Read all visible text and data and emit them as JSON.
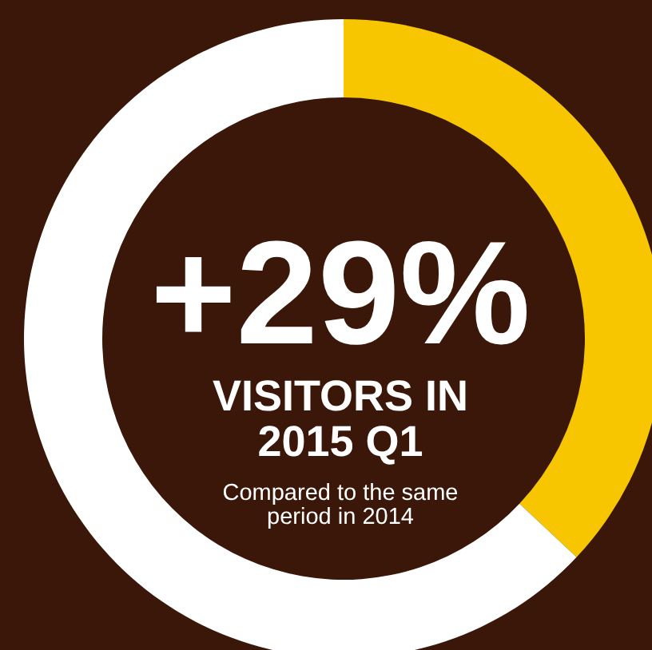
{
  "chart_data": {
    "type": "donut",
    "title": "+29%",
    "subtitle": "VISITORS IN 2015 Q1",
    "annotations": [
      "Compared to the same period in 2014"
    ],
    "categories": [
      null,
      null
    ],
    "values": [
      37,
      63
    ],
    "colors": [
      "#f7c600",
      "#ffffff"
    ]
  }
}
